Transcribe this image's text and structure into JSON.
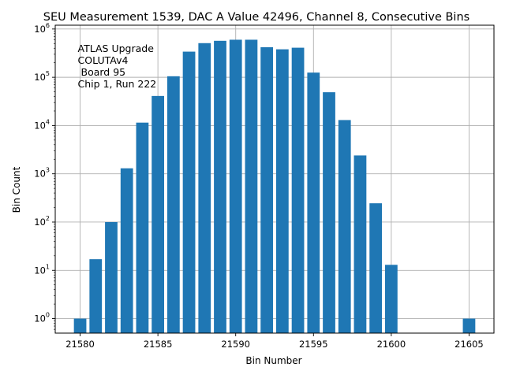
{
  "chart_data": {
    "type": "bar",
    "title": "SEU Measurement 1539, DAC A Value 42496, Channel 8, Consecutive Bins",
    "xlabel": "Bin Number",
    "ylabel": "Bin Count",
    "y_scale": "log",
    "grid": true,
    "bar_color": "#1f77b4",
    "xlim": [
      21578.4,
      21606.6
    ],
    "ylim": [
      0.5,
      1200000
    ],
    "x_ticks": [
      21580,
      21585,
      21590,
      21595,
      21600,
      21605
    ],
    "x_tick_labels": [
      "21580",
      "21585",
      "21590",
      "21595",
      "21600",
      "21605"
    ],
    "y_ticks": [
      {
        "value": 1,
        "base": "10",
        "exp": "0"
      },
      {
        "value": 10,
        "base": "10",
        "exp": "1"
      },
      {
        "value": 100,
        "base": "10",
        "exp": "2"
      },
      {
        "value": 1000,
        "base": "10",
        "exp": "3"
      },
      {
        "value": 10000,
        "base": "10",
        "exp": "4"
      },
      {
        "value": 100000,
        "base": "10",
        "exp": "5"
      },
      {
        "value": 1000000,
        "base": "10",
        "exp": "6"
      }
    ],
    "annotation_lines": [
      "ATLAS Upgrade",
      "COLUTAv4",
      " Board 95",
      "Chip 1, Run 222"
    ],
    "bars": [
      {
        "x": 21580,
        "y": 1
      },
      {
        "x": 21581,
        "y": 17
      },
      {
        "x": 21582,
        "y": 100
      },
      {
        "x": 21583,
        "y": 1300
      },
      {
        "x": 21584,
        "y": 11500
      },
      {
        "x": 21585,
        "y": 41000
      },
      {
        "x": 21586,
        "y": 105000
      },
      {
        "x": 21587,
        "y": 340000
      },
      {
        "x": 21588,
        "y": 510000
      },
      {
        "x": 21589,
        "y": 570000
      },
      {
        "x": 21590,
        "y": 600000
      },
      {
        "x": 21591,
        "y": 600000
      },
      {
        "x": 21592,
        "y": 420000
      },
      {
        "x": 21593,
        "y": 380000
      },
      {
        "x": 21594,
        "y": 410000
      },
      {
        "x": 21595,
        "y": 125000
      },
      {
        "x": 21596,
        "y": 49000
      },
      {
        "x": 21597,
        "y": 13000
      },
      {
        "x": 21598,
        "y": 2400
      },
      {
        "x": 21599,
        "y": 245
      },
      {
        "x": 21600,
        "y": 13
      },
      {
        "x": 21605,
        "y": 1
      }
    ]
  }
}
